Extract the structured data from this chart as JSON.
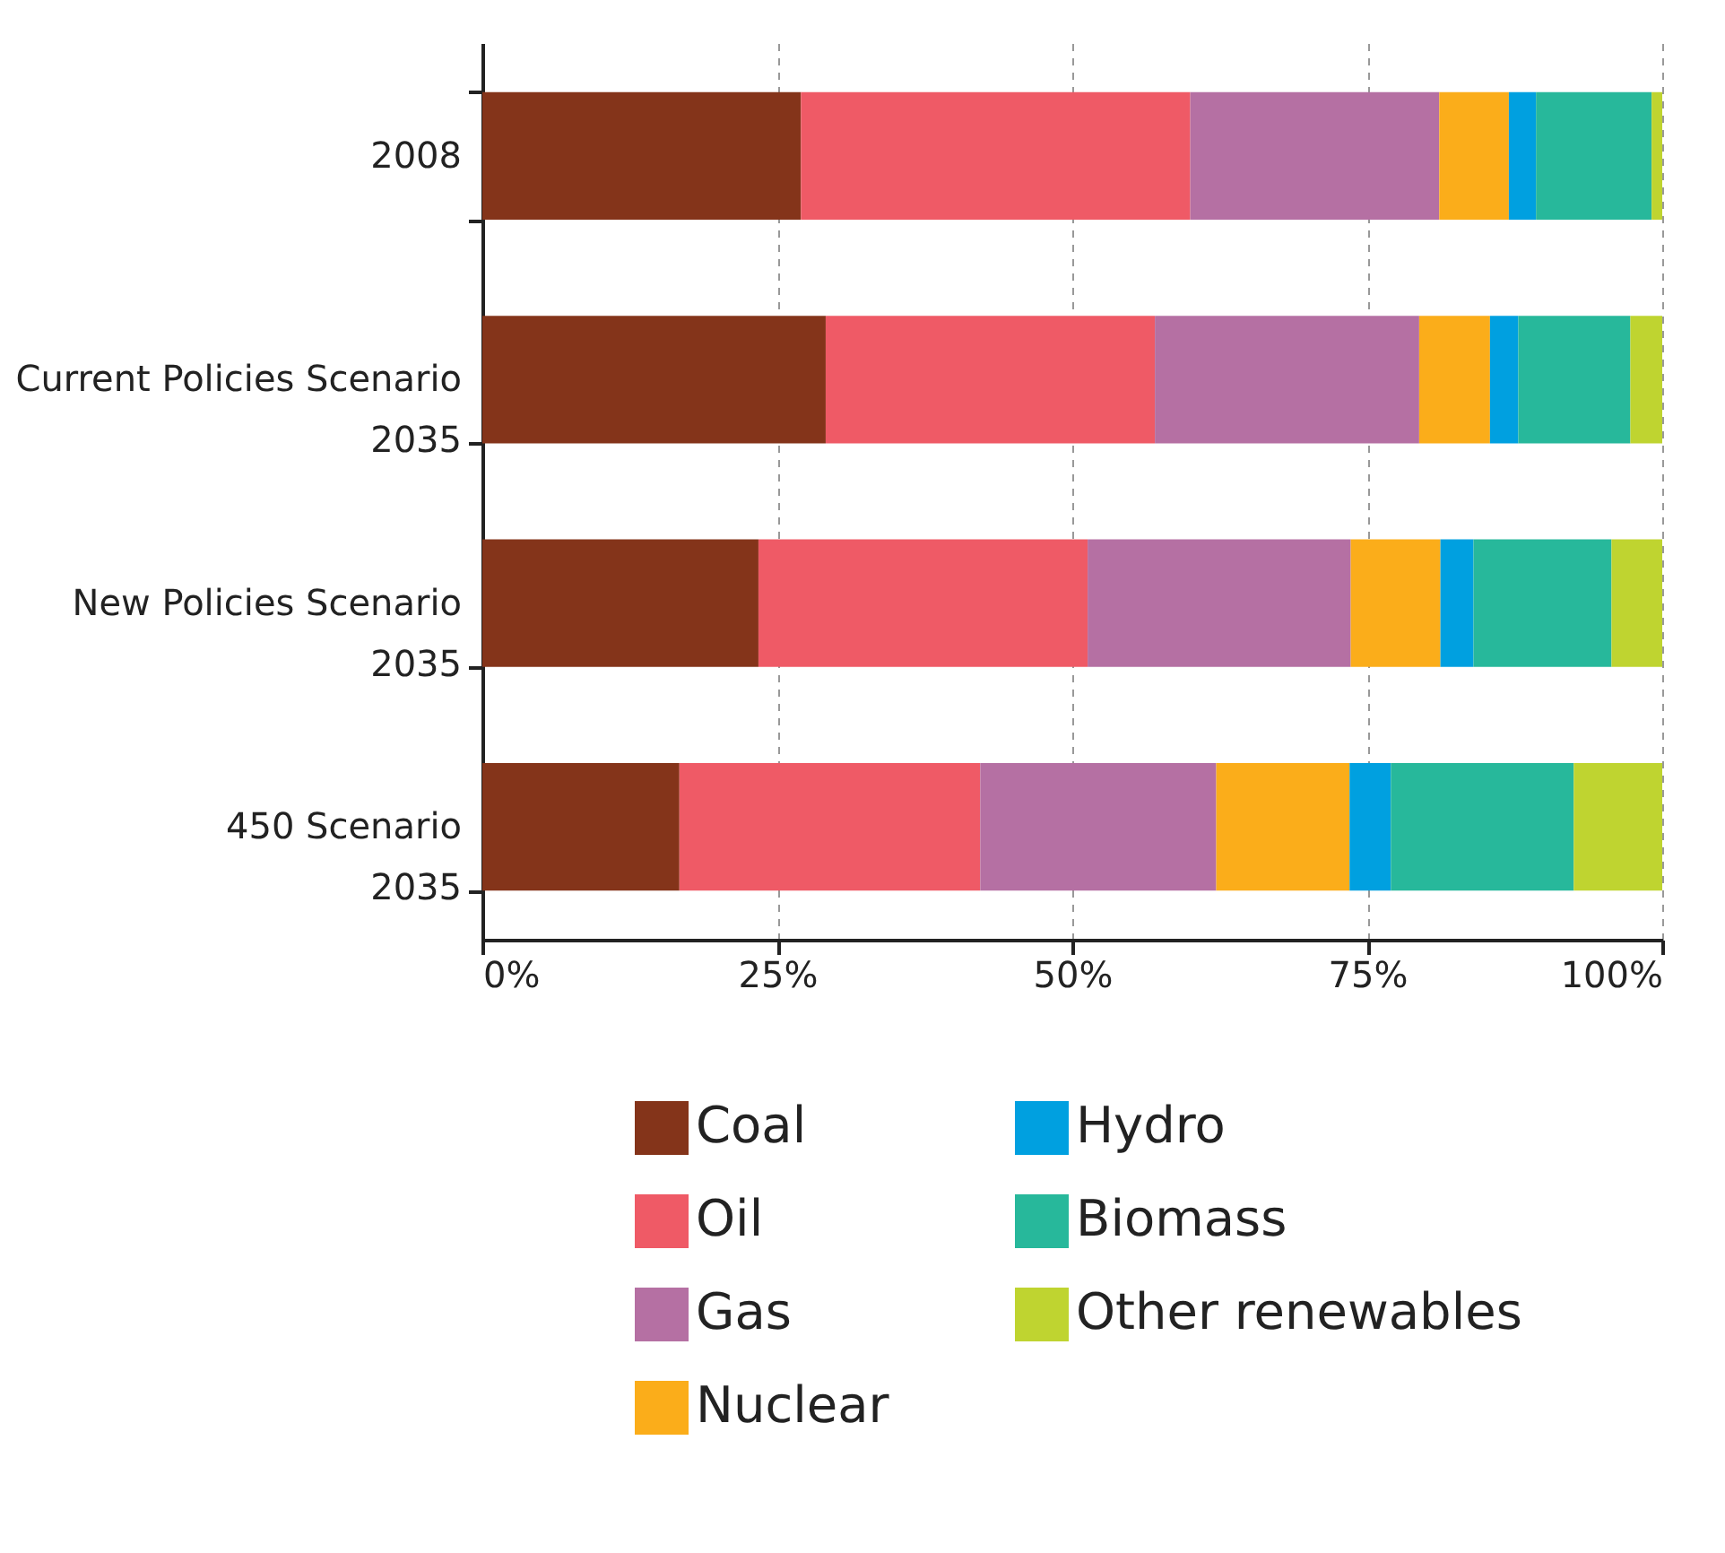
{
  "chart_data": {
    "type": "bar",
    "orientation": "horizontal",
    "stacked": true,
    "categories": [
      "2008",
      "Current Policies Scenario\n2035",
      "New Policies Scenario\n2035",
      "450 Scenario\n2035"
    ],
    "series": [
      {
        "name": "Coal",
        "color": "#84341a",
        "values": [
          27,
          29.1,
          23.4,
          16.7
        ]
      },
      {
        "name": "Oil",
        "color": "#ef5a66",
        "values": [
          33,
          27.9,
          27.9,
          25.5
        ]
      },
      {
        "name": "Gas",
        "color": "#b570a3",
        "values": [
          21.1,
          22.4,
          22.3,
          20
        ]
      },
      {
        "name": "Nuclear",
        "color": "#fbad1a",
        "values": [
          5.9,
          6,
          7.6,
          11.3
        ]
      },
      {
        "name": "Hydro",
        "color": "#00a0e0",
        "values": [
          2.3,
          2.4,
          2.8,
          3.5
        ]
      },
      {
        "name": "Biomass",
        "color": "#27b89b",
        "values": [
          9.8,
          9.5,
          11.7,
          15.5
        ]
      },
      {
        "name": "Other renewables",
        "color": "#bfd430",
        "values": [
          0.9,
          2.7,
          4.3,
          7.5
        ]
      }
    ],
    "xlim": [
      0,
      100
    ],
    "xticks": [
      {
        "value": 0,
        "label": "0%"
      },
      {
        "value": 25,
        "label": "25%"
      },
      {
        "value": 50,
        "label": "50%"
      },
      {
        "value": 75,
        "label": "75%"
      },
      {
        "value": 100,
        "label": "100%"
      }
    ],
    "grid": "x",
    "legend": "bottom"
  }
}
